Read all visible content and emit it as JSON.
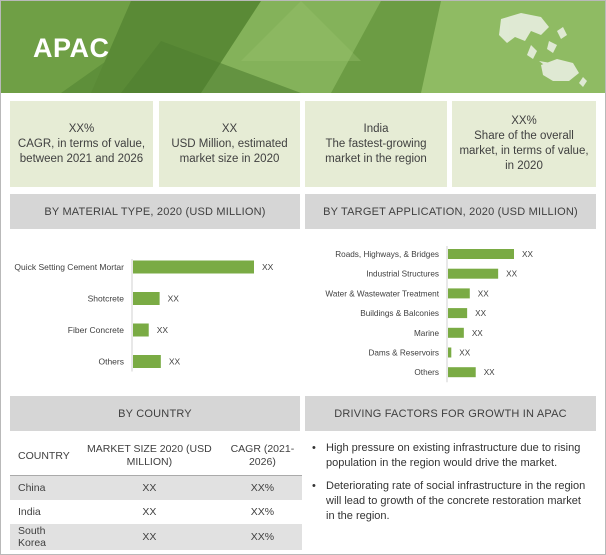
{
  "banner": {
    "title": "APAC"
  },
  "kpis": [
    {
      "value": "XX%",
      "text": "CAGR, in terms of value, between 2021 and 2026"
    },
    {
      "value": "XX",
      "text": "USD Million, estimated market size in 2020"
    },
    {
      "value": "India",
      "text": "The fastest-growing market in the region"
    },
    {
      "value": "XX%",
      "text": "Share of the overall market, in terms of value, in 2020"
    }
  ],
  "headers": {
    "material": "BY MATERIAL TYPE, 2020 (USD MILLION)",
    "application": "BY TARGET APPLICATION, 2020 (USD MILLION)",
    "country": "BY COUNTRY",
    "drivers": "DRIVING FACTORS FOR GROWTH IN APAC"
  },
  "chart_data": [
    {
      "type": "bar",
      "orientation": "horizontal",
      "title": "BY MATERIAL TYPE, 2020 (USD MILLION)",
      "categories": [
        "Quick Setting Cement Mortar",
        "Shotcrete",
        "Fiber Concrete",
        "Others"
      ],
      "values": [
        100,
        22,
        13,
        23
      ],
      "data_labels": [
        "XX",
        "XX",
        "XX",
        "XX"
      ],
      "color": "#7aab44"
    },
    {
      "type": "bar",
      "orientation": "horizontal",
      "title": "BY TARGET APPLICATION, 2020 (USD MILLION)",
      "categories": [
        "Roads, Highways, & Bridges",
        "Industrial Structures",
        "Water & Wastewater Treatment",
        "Buildings & Balconies",
        "Marine",
        "Dams & Reservoirs",
        "Others"
      ],
      "values": [
        100,
        76,
        33,
        29,
        24,
        5,
        42
      ],
      "data_labels": [
        "XX",
        "XX",
        "XX",
        "XX",
        "XX",
        "XX",
        "XX"
      ],
      "color": "#7aab44"
    }
  ],
  "country_table": {
    "headers": [
      "COUNTRY",
      "MARKET SIZE 2020 (USD MILLION)",
      "CAGR (2021-2026)"
    ],
    "rows": [
      [
        "China",
        "XX",
        "XX%"
      ],
      [
        "India",
        "XX",
        "XX%"
      ],
      [
        "South Korea",
        "XX",
        "XX%"
      ]
    ]
  },
  "drivers": [
    "High pressure on existing infrastructure due to rising population in the region would drive the market.",
    "Deteriorating rate of social infrastructure in the region will lead to growth of the concrete restoration market in the region."
  ]
}
